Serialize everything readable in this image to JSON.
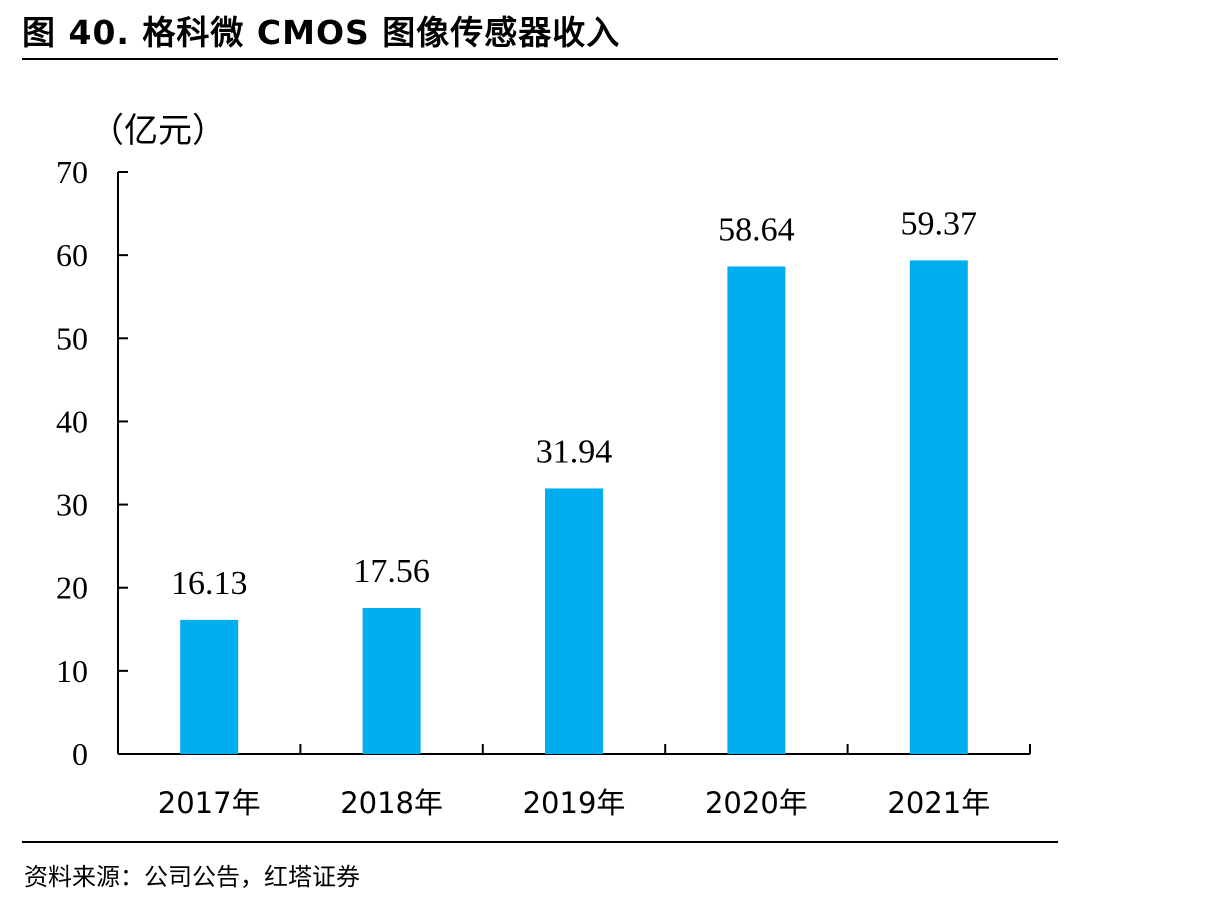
{
  "header": {
    "title": "图 40. 格科微 CMOS 图像传感器收入"
  },
  "footer": {
    "source": "资料来源：公司公告，红塔证券"
  },
  "chart_data": {
    "type": "bar",
    "title": "图 40. 格科微 CMOS 图像传感器收入",
    "unit_label": "（亿元）",
    "categories": [
      "2017年",
      "2018年",
      "2019年",
      "2020年",
      "2021年"
    ],
    "values": [
      16.13,
      17.56,
      31.94,
      58.64,
      59.37
    ],
    "data_labels": [
      "16.13",
      "17.56",
      "31.94",
      "58.64",
      "59.37"
    ],
    "yticks": [
      "0",
      "10",
      "20",
      "30",
      "40",
      "50",
      "60",
      "70"
    ],
    "ylim": [
      0,
      70
    ],
    "grid": false,
    "legend": "none",
    "bar_color": "#00AEEF"
  }
}
